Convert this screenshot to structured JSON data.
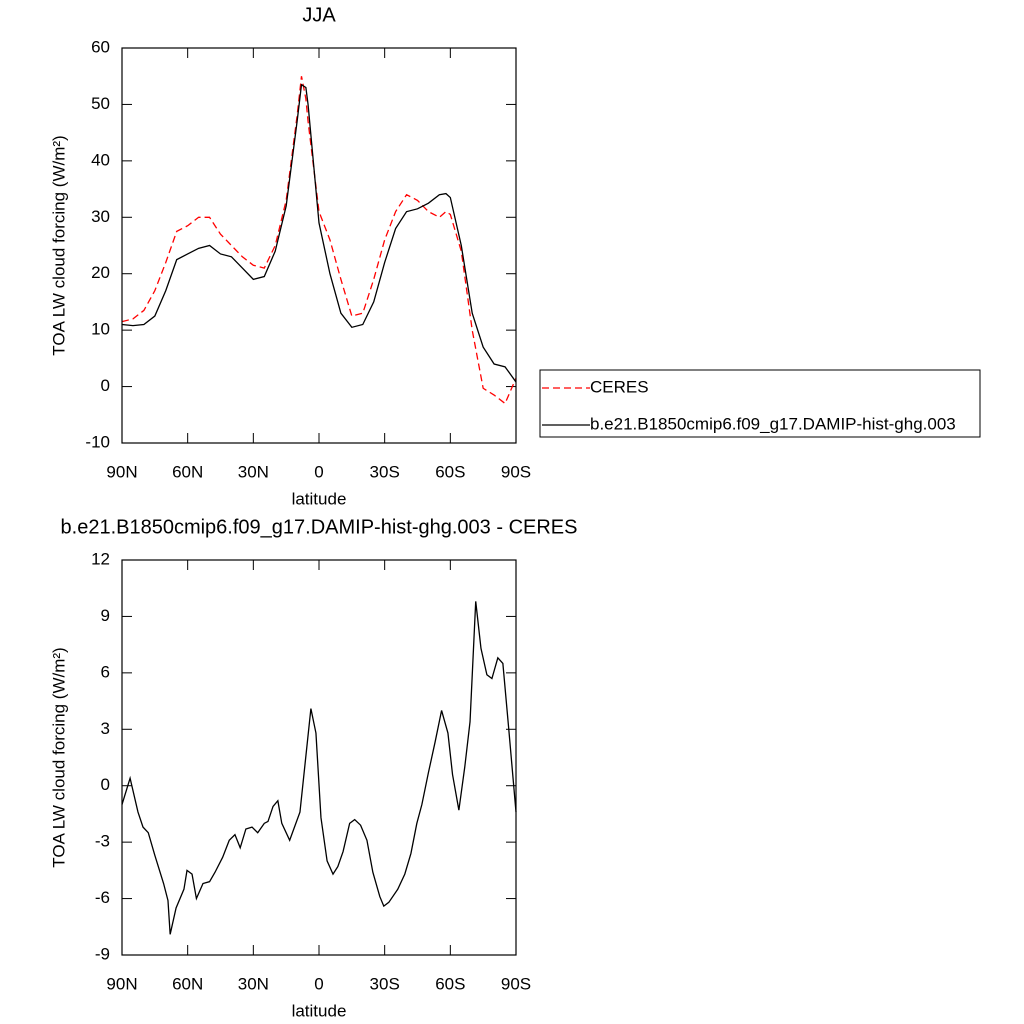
{
  "chart_data": [
    {
      "type": "line",
      "title": "JJA",
      "xlabel": "latitude",
      "ylabel": "TOA LW cloud forcing (W/m²)",
      "xlim": [
        90,
        -90
      ],
      "ylim": [
        -10,
        60
      ],
      "xticks": [
        {
          "value": 90,
          "label": "90N"
        },
        {
          "value": 60,
          "label": "60N"
        },
        {
          "value": 30,
          "label": "30N"
        },
        0,
        {
          "value": -30,
          "label": "30S"
        },
        {
          "value": -60,
          "label": "60S"
        },
        {
          "value": -90,
          "label": "90S"
        }
      ],
      "yticks": [
        -10,
        0,
        10,
        20,
        30,
        40,
        50,
        60
      ],
      "legend": "right",
      "x": [
        90,
        85,
        80,
        75,
        70,
        65,
        60,
        55,
        50,
        45,
        40,
        35,
        30,
        25,
        20,
        15,
        10,
        8,
        6,
        5,
        0,
        -5,
        -10,
        -15,
        -20,
        -25,
        -30,
        -35,
        -40,
        -45,
        -50,
        -55,
        -58,
        -60,
        -65,
        -70,
        -75,
        -80,
        -85,
        -90
      ],
      "series": [
        {
          "name": "CERES",
          "color": "#ff0000",
          "dashed": true,
          "values": [
            11.5,
            12,
            13.5,
            17,
            22,
            27.5,
            28.5,
            30,
            30,
            27,
            25,
            23,
            21.5,
            21,
            25,
            33,
            48,
            55,
            51,
            47,
            31,
            26,
            19,
            12.5,
            13,
            19,
            26,
            31,
            34,
            33,
            31,
            30,
            31,
            30.5,
            24,
            10,
            -0.3,
            -1.5,
            -3,
            1.5
          ]
        },
        {
          "name": "b.e21.B1850cmip6.f09_g17.DAMIP-hist-ghg.003",
          "color": "#000000",
          "dashed": false,
          "values": [
            11,
            10.8,
            11,
            12.5,
            17,
            22.5,
            23.5,
            24.5,
            25,
            23.5,
            23,
            21,
            19,
            19.5,
            24,
            32,
            47,
            53.5,
            53,
            50,
            29,
            20,
            13,
            10.5,
            11,
            15,
            22,
            28,
            31,
            31.5,
            32.5,
            34,
            34.2,
            33.5,
            25,
            13,
            7,
            4,
            3.5,
            0.8
          ]
        }
      ]
    },
    {
      "type": "line",
      "title": "b.e21.B1850cmip6.f09_g17.DAMIP-hist-ghg.003 - CERES",
      "xlabel": "latitude",
      "ylabel": "TOA LW cloud forcing (W/m²)",
      "xlim": [
        90,
        -90
      ],
      "ylim": [
        -9,
        12
      ],
      "xticks": [
        {
          "value": 90,
          "label": "90N"
        },
        {
          "value": 60,
          "label": "60N"
        },
        {
          "value": 30,
          "label": "30N"
        },
        0,
        {
          "value": -30,
          "label": "30S"
        },
        {
          "value": -60,
          "label": "60S"
        },
        {
          "value": -90,
          "label": "90S"
        }
      ],
      "yticks": [
        -9,
        -6,
        -3,
        0,
        3,
        6,
        9,
        12
      ],
      "x": [
        90,
        86.3,
        82.7,
        80.4,
        78,
        75,
        71,
        69,
        68,
        65.3,
        61.7,
        60.3,
        58,
        56,
        53,
        50,
        47.5,
        44,
        41,
        38.4,
        36,
        33.4,
        30.6,
        28,
        25,
        23.3,
        21,
        18.8,
        17,
        13.4,
        8.7,
        3.7,
        1.4,
        -0.9,
        -3.7,
        -6.4,
        -8.6,
        -11,
        -14,
        -16.3,
        -19,
        -21.9,
        -24.6,
        -27.8,
        -29.6,
        -31.9,
        -36,
        -39.2,
        -42,
        -44.7,
        -47,
        -50,
        -53,
        -56,
        -58.9,
        -61,
        -63.9,
        -66.6,
        -69,
        -71.6,
        -74,
        -76.7,
        -79,
        -81.7,
        -84,
        -86.7,
        -90
      ],
      "series": [
        {
          "color": "#000000",
          "dashed": false,
          "values": [
            -1,
            0.4,
            -1.4,
            -2.2,
            -2.5,
            -3.7,
            -5.2,
            -6.1,
            -7.9,
            -6.5,
            -5.5,
            -4.5,
            -4.7,
            -6,
            -5.2,
            -5.1,
            -4.6,
            -3.8,
            -2.9,
            -2.6,
            -3.3,
            -2.3,
            -2.2,
            -2.5,
            -2,
            -1.9,
            -1.1,
            -0.8,
            -2,
            -2.9,
            -1.4,
            4.1,
            2.8,
            -1.7,
            -4,
            -4.7,
            -4.3,
            -3.5,
            -2,
            -1.8,
            -2.1,
            -2.9,
            -4.6,
            -5.9,
            -6.4,
            -6.2,
            -5.5,
            -4.7,
            -3.6,
            -2,
            -1,
            0.7,
            2.3,
            4,
            2.8,
            0.6,
            -1.3,
            1,
            3.4,
            9.8,
            7.3,
            5.9,
            5.7,
            6.8,
            6.5,
            3,
            -1.4
          ]
        }
      ]
    }
  ]
}
